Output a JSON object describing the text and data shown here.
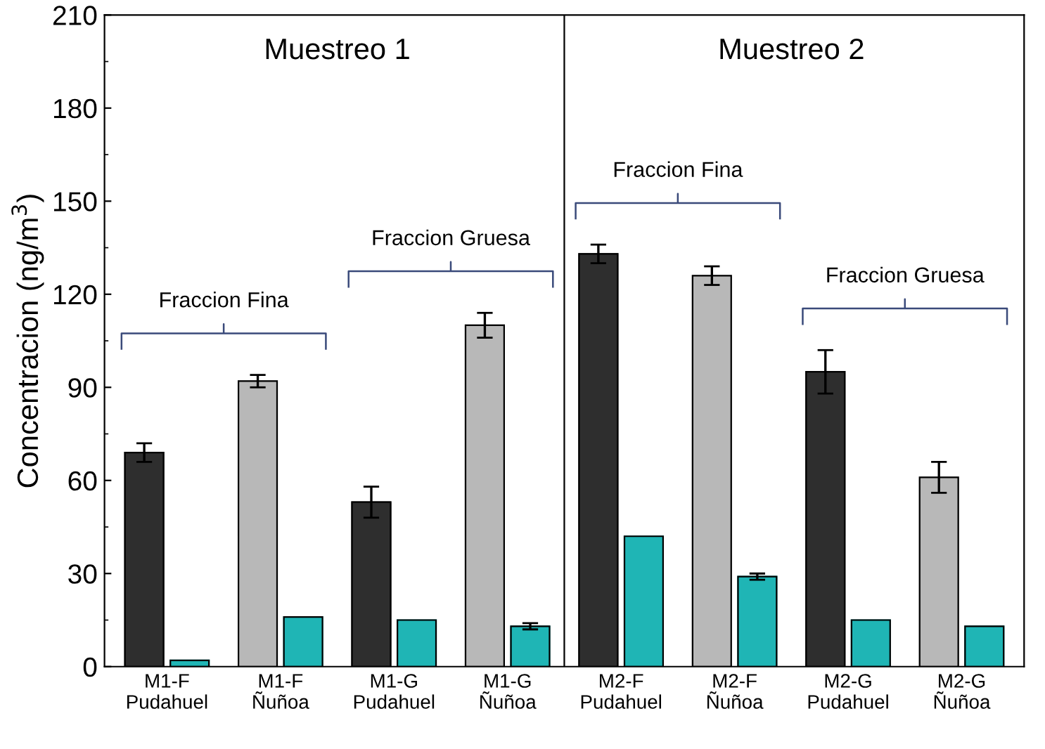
{
  "chart_data": {
    "type": "bar",
    "ylabel": "Concentracion (ng/m$^{3}$)",
    "categories": [
      "M1-F\nPudahuel",
      "M1-F\nÑuñoa",
      "M1-G\nPudahuel",
      "M1-G\nÑuñoa",
      "M2-F\nPudahuel",
      "M2-F\nÑuñoa",
      "M2-G\nPudahuel",
      "M2-G\nÑuñoa"
    ],
    "series": [
      {
        "colors": [
          "#2e2e2e",
          "#b8b8b8",
          "#2e2e2e",
          "#b8b8b8",
          "#2e2e2e",
          "#b8b8b8",
          "#2e2e2e",
          "#b8b8b8"
        ],
        "values": [
          69,
          92,
          53,
          110,
          133,
          126,
          95,
          61
        ],
        "errors": [
          3,
          2,
          5,
          4,
          3,
          3,
          7,
          5
        ]
      },
      {
        "color": "#1fb5b5",
        "values": [
          2,
          16,
          15,
          13,
          42,
          29,
          15,
          13
        ],
        "errors": [
          null,
          null,
          null,
          1,
          null,
          1,
          null,
          null
        ]
      }
    ],
    "ylim": [
      0,
      210
    ],
    "yticks": [
      0,
      30,
      60,
      90,
      120,
      150,
      180,
      210
    ],
    "annotations": [
      "Muestreo 1",
      "Muestreo 2",
      "Fraccion Fina",
      "Fraccion Gruesa",
      "Fraccion Fina",
      "Fraccion Gruesa"
    ],
    "grid": false,
    "legend": false
  }
}
